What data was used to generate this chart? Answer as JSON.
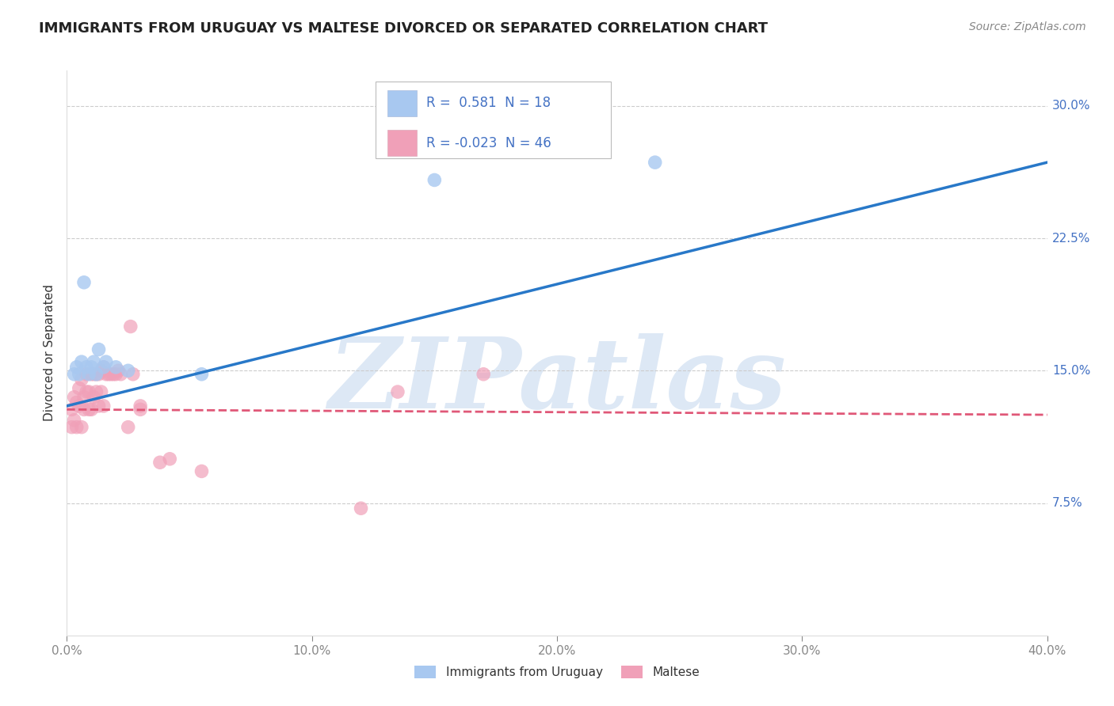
{
  "title": "IMMIGRANTS FROM URUGUAY VS MALTESE DIVORCED OR SEPARATED CORRELATION CHART",
  "source": "Source: ZipAtlas.com",
  "ylabel": "Divorced or Separated",
  "xlim": [
    0.0,
    0.4
  ],
  "ylim": [
    0.0,
    0.32
  ],
  "xticks": [
    0.0,
    0.1,
    0.2,
    0.3,
    0.4
  ],
  "xtick_labels": [
    "0.0%",
    "10.0%",
    "20.0%",
    "30.0%",
    "40.0%"
  ],
  "ytick_labels_right": [
    "7.5%",
    "15.0%",
    "22.5%",
    "30.0%"
  ],
  "ytick_vals_right": [
    0.075,
    0.15,
    0.225,
    0.3
  ],
  "gridline_vals": [
    0.075,
    0.15,
    0.225,
    0.3
  ],
  "series_blue": {
    "label": "Immigrants from Uruguay",
    "R": 0.581,
    "N": 18,
    "color": "#a8c8f0",
    "x": [
      0.003,
      0.004,
      0.005,
      0.006,
      0.007,
      0.008,
      0.009,
      0.01,
      0.011,
      0.012,
      0.013,
      0.015,
      0.016,
      0.02,
      0.025,
      0.055,
      0.15,
      0.24
    ],
    "y": [
      0.148,
      0.152,
      0.148,
      0.155,
      0.2,
      0.152,
      0.148,
      0.152,
      0.155,
      0.148,
      0.162,
      0.152,
      0.155,
      0.152,
      0.15,
      0.148,
      0.258,
      0.268
    ]
  },
  "series_pink": {
    "label": "Maltese",
    "R": -0.023,
    "N": 46,
    "color": "#f0a0b8",
    "x": [
      0.002,
      0.002,
      0.003,
      0.003,
      0.004,
      0.004,
      0.005,
      0.005,
      0.006,
      0.006,
      0.007,
      0.007,
      0.008,
      0.008,
      0.009,
      0.009,
      0.01,
      0.01,
      0.011,
      0.011,
      0.012,
      0.012,
      0.013,
      0.013,
      0.014,
      0.014,
      0.015,
      0.015,
      0.016,
      0.017,
      0.018,
      0.019,
      0.02,
      0.021,
      0.022,
      0.025,
      0.026,
      0.027,
      0.03,
      0.03,
      0.038,
      0.042,
      0.055,
      0.12,
      0.135,
      0.17
    ],
    "y": [
      0.128,
      0.118,
      0.135,
      0.122,
      0.132,
      0.118,
      0.14,
      0.13,
      0.145,
      0.118,
      0.135,
      0.128,
      0.148,
      0.138,
      0.128,
      0.138,
      0.148,
      0.128,
      0.135,
      0.148,
      0.148,
      0.138,
      0.148,
      0.13,
      0.15,
      0.138,
      0.152,
      0.13,
      0.148,
      0.148,
      0.148,
      0.148,
      0.148,
      0.15,
      0.148,
      0.118,
      0.175,
      0.148,
      0.13,
      0.128,
      0.098,
      0.1,
      0.093,
      0.072,
      0.138,
      0.148
    ]
  },
  "blue_line": {
    "color": "#2878c8",
    "x0": 0.0,
    "y0": 0.13,
    "x1": 0.4,
    "y1": 0.268
  },
  "pink_line": {
    "color": "#e05878",
    "x0": 0.0,
    "y0": 0.128,
    "x1": 0.4,
    "y1": 0.125,
    "dashed": true
  },
  "watermark": "ZIPatlas",
  "watermark_color": "#dde8f5",
  "title_fontsize": 13,
  "axis_label_fontsize": 11,
  "tick_fontsize": 11,
  "background_color": "#ffffff"
}
